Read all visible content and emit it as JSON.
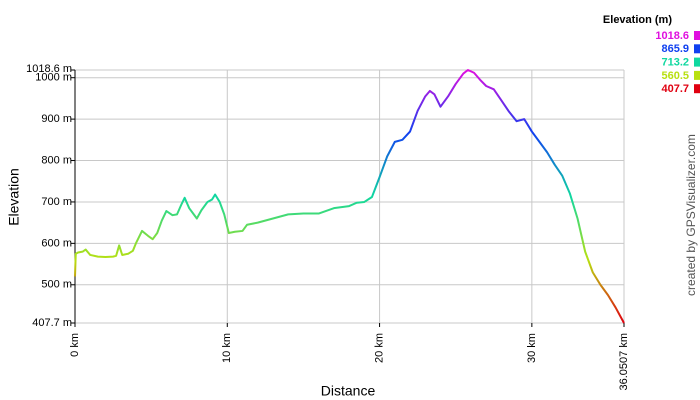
{
  "chart_data": {
    "type": "line",
    "x_label": "Distance",
    "y_label": "Elevation",
    "credit": "created by GPSVisualizer.com",
    "legend_title": "Elevation (m)",
    "color_scale": [
      {
        "value": 1018.6,
        "color": "#e010e0"
      },
      {
        "value": 865.9,
        "color": "#1040f0"
      },
      {
        "value": 713.2,
        "color": "#10d8a0"
      },
      {
        "value": 560.5,
        "color": "#b8e010"
      },
      {
        "value": 407.7,
        "color": "#e00010"
      }
    ],
    "grid": true,
    "xlim": [
      0,
      36.0507
    ],
    "ylim": [
      407.7,
      1018.6
    ],
    "xticks": [
      {
        "value": 0,
        "label": "0 km"
      },
      {
        "value": 10,
        "label": "10 km"
      },
      {
        "value": 20,
        "label": "20 km"
      },
      {
        "value": 30,
        "label": "30 km"
      },
      {
        "value": 36.0507,
        "label": "36.0507 km"
      }
    ],
    "yticks": [
      {
        "value": 407.7,
        "label": "407.7 m"
      },
      {
        "value": 500,
        "label": "500 m"
      },
      {
        "value": 600,
        "label": "600 m"
      },
      {
        "value": 700,
        "label": "700 m"
      },
      {
        "value": 800,
        "label": "800 m"
      },
      {
        "value": 900,
        "label": "900 m"
      },
      {
        "value": 1000,
        "label": "1000 m"
      },
      {
        "value": 1018.6,
        "label": "1018.6 m"
      }
    ],
    "x": [
      0,
      0.05,
      0.2,
      0.5,
      0.7,
      1,
      1.5,
      2,
      2.5,
      2.7,
      2.9,
      3.1,
      3.5,
      3.8,
      4,
      4.4,
      4.8,
      5.1,
      5.4,
      5.7,
      6,
      6.4,
      6.7,
      7,
      7.2,
      7.5,
      7.8,
      8,
      8.3,
      8.7,
      9,
      9.2,
      9.5,
      9.8,
      10.1,
      10.5,
      11,
      11.3,
      12,
      13,
      14,
      15,
      16,
      17,
      18,
      18.5,
      19,
      19.5,
      20,
      20.5,
      21,
      21.5,
      22,
      22.5,
      23,
      23.3,
      23.6,
      24,
      24.5,
      25,
      25.5,
      25.8,
      26.2,
      26.6,
      27,
      27.5,
      28,
      28.5,
      29,
      29.5,
      30,
      30.5,
      31,
      31.5,
      32,
      32.5,
      33,
      33.5,
      34,
      34.5,
      35,
      35.5,
      36.0507
    ],
    "values": [
      520,
      575,
      578,
      580,
      585,
      572,
      568,
      567,
      568,
      570,
      595,
      572,
      575,
      582,
      600,
      630,
      618,
      610,
      625,
      655,
      678,
      668,
      670,
      695,
      710,
      685,
      670,
      660,
      680,
      700,
      706,
      718,
      700,
      670,
      625,
      628,
      630,
      645,
      650,
      660,
      670,
      672,
      672,
      685,
      690,
      698,
      700,
      712,
      760,
      810,
      845,
      850,
      870,
      920,
      955,
      968,
      960,
      930,
      955,
      985,
      1010,
      1018.6,
      1012,
      995,
      980,
      972,
      945,
      918,
      895,
      900,
      870,
      845,
      820,
      790,
      763,
      720,
      660,
      580,
      530,
      500,
      475,
      445,
      407.7
    ]
  }
}
